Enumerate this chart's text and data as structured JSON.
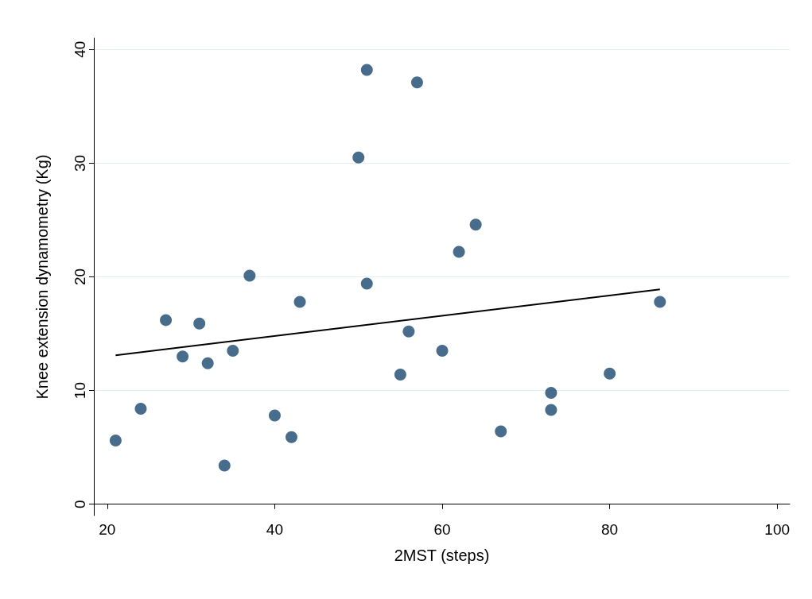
{
  "chart_data": {
    "type": "scatter",
    "xlabel": "2MST (steps)",
    "ylabel": "Knee extension dynamometry (Kg)",
    "xlim": [
      18.4,
      101.5
    ],
    "xticks": [
      20,
      40,
      60,
      80,
      100
    ],
    "ylim": [
      -1,
      41
    ],
    "yticks": [
      0,
      10,
      20,
      30,
      40
    ],
    "grid": "y",
    "marker": "circle",
    "series": [
      {
        "color": "#1a476f",
        "x": [
          21,
          24,
          27,
          29,
          31,
          32,
          34,
          35,
          37,
          40,
          42,
          43,
          50,
          51,
          51,
          55,
          56,
          57,
          60,
          62,
          64,
          67,
          73,
          73,
          80,
          86
        ],
        "values": [
          5.6,
          8.4,
          16.2,
          13.0,
          15.9,
          12.4,
          3.4,
          13.5,
          20.1,
          7.8,
          5.9,
          17.8,
          30.5,
          38.2,
          19.4,
          11.4,
          15.2,
          37.1,
          13.5,
          22.2,
          24.6,
          6.4,
          9.8,
          8.3,
          11.5,
          17.8
        ]
      },
      {
        "type": "line",
        "color": "#000000",
        "x": [
          21,
          86
        ],
        "values": [
          13.1,
          18.9
        ],
        "marker": "none",
        "line_style": "solid"
      }
    ]
  }
}
